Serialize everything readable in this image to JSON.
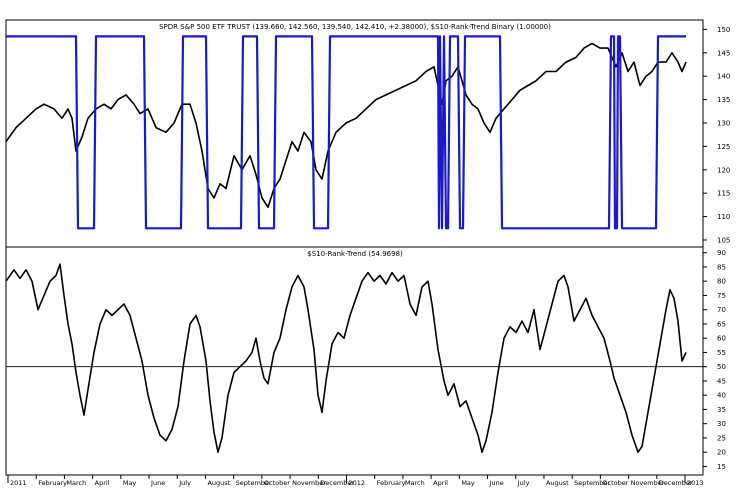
{
  "chart_data": [
    {
      "type": "line",
      "title": "SPDR S&P 500 ETF TRUST (139.660, 142.560, 139.540, 142.410, +2.38000), $S10-Rank-Trend Binary (1.00000)",
      "y_ticks": [
        105,
        110,
        115,
        120,
        125,
        130,
        135,
        140,
        145,
        150
      ],
      "ylim": [
        103.5,
        152
      ],
      "series": [
        {
          "name": "SPDR S&P 500 ETF TRUST",
          "color": "#000000",
          "points": [
            [
              0,
              126
            ],
            [
              10,
              129
            ],
            [
              20,
              131
            ],
            [
              30,
              133
            ],
            [
              38,
              134
            ],
            [
              48,
              133
            ],
            [
              56,
              131
            ],
            [
              62,
              133
            ],
            [
              66,
              131
            ],
            [
              70,
              124
            ],
            [
              76,
              127
            ],
            [
              82,
              131
            ],
            [
              90,
              133
            ],
            [
              98,
              134
            ],
            [
              105,
              133
            ],
            [
              112,
              135
            ],
            [
              120,
              136
            ],
            [
              128,
              134
            ],
            [
              134,
              132
            ],
            [
              142,
              133
            ],
            [
              150,
              129
            ],
            [
              160,
              128
            ],
            [
              168,
              130
            ],
            [
              176,
              134
            ],
            [
              184,
              134
            ],
            [
              190,
              130
            ],
            [
              196,
              124
            ],
            [
              202,
              116
            ],
            [
              208,
              114
            ],
            [
              214,
              117
            ],
            [
              220,
              116
            ],
            [
              228,
              123
            ],
            [
              236,
              120
            ],
            [
              244,
              123
            ],
            [
              250,
              119
            ],
            [
              256,
              114
            ],
            [
              262,
              112
            ],
            [
              268,
              116
            ],
            [
              274,
              118
            ],
            [
              280,
              122
            ],
            [
              286,
              126
            ],
            [
              292,
              124
            ],
            [
              298,
              128
            ],
            [
              305,
              126
            ],
            [
              310,
              120
            ],
            [
              316,
              118
            ],
            [
              322,
              124
            ],
            [
              330,
              128
            ],
            [
              340,
              130
            ],
            [
              350,
              131
            ],
            [
              360,
              133
            ],
            [
              370,
              135
            ],
            [
              380,
              136
            ],
            [
              390,
              137
            ],
            [
              400,
              138
            ],
            [
              410,
              139
            ],
            [
              420,
              141
            ],
            [
              428,
              142
            ],
            [
              432,
              138
            ],
            [
              436,
              134
            ],
            [
              440,
              139
            ],
            [
              446,
              140
            ],
            [
              452,
              142
            ],
            [
              456,
              139
            ],
            [
              460,
              136
            ],
            [
              466,
              134
            ],
            [
              472,
              133
            ],
            [
              478,
              130
            ],
            [
              484,
              128
            ],
            [
              490,
              131
            ],
            [
              498,
              133
            ],
            [
              506,
              135
            ],
            [
              514,
              137
            ],
            [
              522,
              138
            ],
            [
              530,
              139
            ],
            [
              540,
              141
            ],
            [
              550,
              141
            ],
            [
              560,
              143
            ],
            [
              570,
              144
            ],
            [
              578,
              146
            ],
            [
              586,
              147
            ],
            [
              594,
              146
            ],
            [
              602,
              146
            ],
            [
              610,
              142
            ],
            [
              616,
              145
            ],
            [
              622,
              141
            ],
            [
              628,
              143
            ],
            [
              634,
              138
            ],
            [
              640,
              140
            ],
            [
              646,
              141
            ],
            [
              652,
              143
            ],
            [
              660,
              143
            ],
            [
              666,
              145
            ],
            [
              672,
              143
            ],
            [
              676,
              141
            ],
            [
              680,
              143
            ]
          ]
        },
        {
          "name": "$S10-Rank-Trend Binary",
          "color": "#1a1acc",
          "points": [
            [
              0,
              148.5
            ],
            [
              70,
              148.5
            ],
            [
              72,
              107.5
            ],
            [
              88,
              107.5
            ],
            [
              90,
              148.5
            ],
            [
              138,
              148.5
            ],
            [
              140,
              107.5
            ],
            [
              175,
              107.5
            ],
            [
              177,
              148.5
            ],
            [
              200,
              148.5
            ],
            [
              202,
              107.5
            ],
            [
              235,
              107.5
            ],
            [
              237,
              148.5
            ],
            [
              251,
              148.5
            ],
            [
              253,
              107.5
            ],
            [
              268,
              107.5
            ],
            [
              270,
              148.5
            ],
            [
              306,
              148.5
            ],
            [
              308,
              107.5
            ],
            [
              322,
              107.5
            ],
            [
              324,
              148.5
            ],
            [
              432,
              148.5
            ],
            [
              433,
              107.5
            ],
            [
              434,
              148.5
            ],
            [
              436,
              107.5
            ],
            [
              438,
              148.5
            ],
            [
              440,
              107.5
            ],
            [
              442,
              107.5
            ],
            [
              444,
              148.5
            ],
            [
              452,
              148.5
            ],
            [
              454,
              107.5
            ],
            [
              457,
              107.5
            ],
            [
              459,
              148.5
            ],
            [
              494,
              148.5
            ],
            [
              496,
              107.5
            ],
            [
              603,
              107.5
            ],
            [
              605,
              148.5
            ],
            [
              608,
              148.5
            ],
            [
              609,
              107.5
            ],
            [
              611,
              107.5
            ],
            [
              612,
              148.5
            ],
            [
              614,
              148.5
            ],
            [
              616,
              107.5
            ],
            [
              650,
              107.5
            ],
            [
              652,
              148.5
            ],
            [
              680,
              148.5
            ]
          ]
        }
      ]
    },
    {
      "type": "line",
      "title": "$S10-Rank-Trend (54.9698)",
      "y_ticks": [
        15,
        20,
        25,
        30,
        35,
        40,
        45,
        50,
        55,
        60,
        65,
        70,
        75,
        80,
        85,
        90
      ],
      "ylim": [
        12,
        92
      ],
      "reference_line": 50,
      "series": [
        {
          "name": "$S10-Rank-Trend",
          "color": "#000000",
          "points": [
            [
              0,
              80
            ],
            [
              8,
              84
            ],
            [
              14,
              81
            ],
            [
              20,
              84
            ],
            [
              26,
              80
            ],
            [
              32,
              70
            ],
            [
              38,
              75
            ],
            [
              44,
              80
            ],
            [
              50,
              82
            ],
            [
              54,
              86
            ],
            [
              58,
              75
            ],
            [
              62,
              65
            ],
            [
              66,
              58
            ],
            [
              70,
              48
            ],
            [
              74,
              40
            ],
            [
              78,
              33
            ],
            [
              82,
              42
            ],
            [
              88,
              55
            ],
            [
              94,
              65
            ],
            [
              100,
              70
            ],
            [
              106,
              68
            ],
            [
              112,
              70
            ],
            [
              118,
              72
            ],
            [
              124,
              68
            ],
            [
              130,
              60
            ],
            [
              136,
              52
            ],
            [
              142,
              40
            ],
            [
              148,
              32
            ],
            [
              154,
              26
            ],
            [
              160,
              24
            ],
            [
              166,
              28
            ],
            [
              172,
              36
            ],
            [
              178,
              52
            ],
            [
              184,
              65
            ],
            [
              190,
              68
            ],
            [
              194,
              64
            ],
            [
              200,
              52
            ],
            [
              204,
              38
            ],
            [
              208,
              27
            ],
            [
              212,
              20
            ],
            [
              216,
              25
            ],
            [
              222,
              40
            ],
            [
              228,
              48
            ],
            [
              234,
              50
            ],
            [
              240,
              52
            ],
            [
              246,
              55
            ],
            [
              250,
              60
            ],
            [
              254,
              52
            ],
            [
              258,
              46
            ],
            [
              262,
              44
            ],
            [
              268,
              55
            ],
            [
              274,
              60
            ],
            [
              280,
              70
            ],
            [
              286,
              78
            ],
            [
              292,
              82
            ],
            [
              298,
              78
            ],
            [
              302,
              70
            ],
            [
              308,
              56
            ],
            [
              312,
              40
            ],
            [
              316,
              34
            ],
            [
              320,
              45
            ],
            [
              326,
              58
            ],
            [
              332,
              62
            ],
            [
              338,
              60
            ],
            [
              344,
              68
            ],
            [
              350,
              74
            ],
            [
              356,
              80
            ],
            [
              362,
              83
            ],
            [
              368,
              80
            ],
            [
              374,
              82
            ],
            [
              380,
              79
            ],
            [
              386,
              83
            ],
            [
              392,
              80
            ],
            [
              398,
              82
            ],
            [
              404,
              72
            ],
            [
              410,
              68
            ],
            [
              416,
              78
            ],
            [
              422,
              80
            ],
            [
              426,
              72
            ],
            [
              432,
              56
            ],
            [
              438,
              45
            ],
            [
              442,
              40
            ],
            [
              448,
              44
            ],
            [
              454,
              36
            ],
            [
              460,
              38
            ],
            [
              466,
              32
            ],
            [
              472,
              26
            ],
            [
              476,
              20
            ],
            [
              480,
              24
            ],
            [
              486,
              34
            ],
            [
              492,
              48
            ],
            [
              498,
              60
            ],
            [
              504,
              64
            ],
            [
              510,
              62
            ],
            [
              516,
              66
            ],
            [
              522,
              62
            ],
            [
              528,
              70
            ],
            [
              534,
              56
            ],
            [
              540,
              64
            ],
            [
              546,
              72
            ],
            [
              552,
              80
            ],
            [
              558,
              82
            ],
            [
              562,
              78
            ],
            [
              568,
              66
            ],
            [
              574,
              70
            ],
            [
              580,
              74
            ],
            [
              586,
              68
            ],
            [
              592,
              64
            ],
            [
              598,
              60
            ],
            [
              604,
              52
            ],
            [
              608,
              46
            ],
            [
              614,
              40
            ],
            [
              620,
              34
            ],
            [
              626,
              26
            ],
            [
              632,
              20
            ],
            [
              636,
              22
            ],
            [
              642,
              34
            ],
            [
              648,
              46
            ],
            [
              654,
              58
            ],
            [
              660,
              70
            ],
            [
              664,
              77
            ],
            [
              668,
              74
            ],
            [
              672,
              66
            ],
            [
              676,
              52
            ],
            [
              680,
              55
            ]
          ]
        }
      ]
    }
  ],
  "x_axis": {
    "labels": [
      "2011",
      "February",
      "March",
      "April",
      "May",
      "June",
      "July",
      "August",
      "September",
      "October",
      "November",
      "December",
      "2012",
      "February",
      "March",
      "April",
      "May",
      "June",
      "July",
      "August",
      "September",
      "October",
      "November",
      "December",
      "2013"
    ]
  }
}
